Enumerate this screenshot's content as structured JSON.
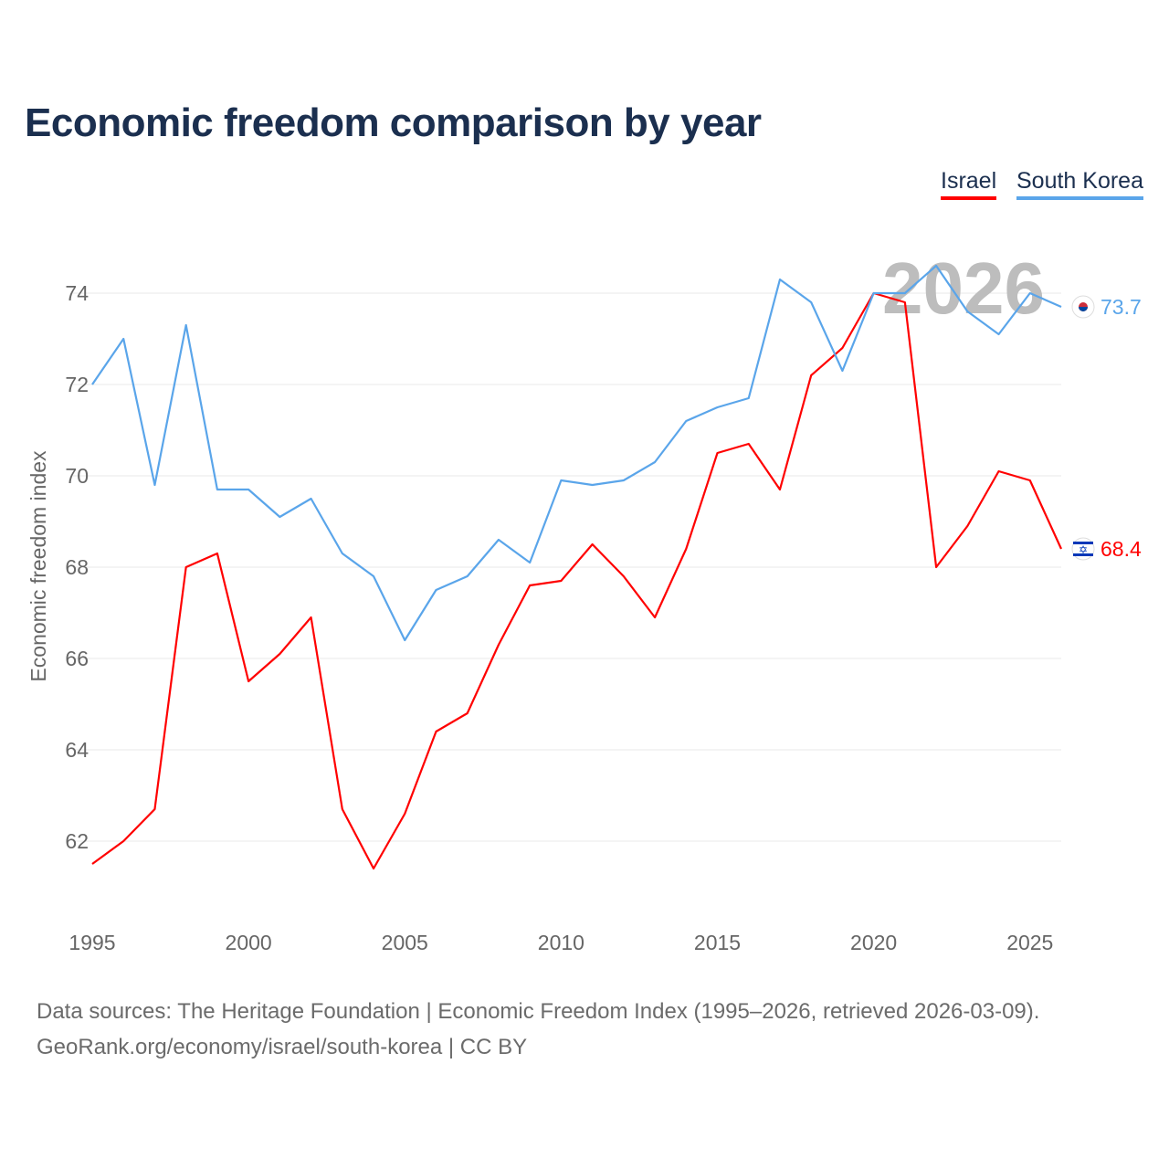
{
  "title": "Economic freedom comparison by year",
  "legend": [
    {
      "label": "Israel",
      "color": "#ff0000"
    },
    {
      "label": "South Korea",
      "color": "#5aa5ea"
    }
  ],
  "footer": {
    "line1": "Data sources: The Heritage Foundation | Economic Freedom Index (1995–2026, retrieved 2026-03-09).",
    "line2": "GeoRank.org/economy/israel/south-korea | CC BY"
  },
  "chart_data": {
    "type": "line",
    "title": "Economic freedom comparison by year",
    "xlabel": "",
    "ylabel": "Economic freedom index",
    "watermark_year": "2026",
    "xlim": [
      1995,
      2026
    ],
    "ylim": [
      60.8,
      75.5
    ],
    "xticks": [
      1995,
      2000,
      2005,
      2010,
      2015,
      2020,
      2025
    ],
    "yticks": [
      62,
      64,
      66,
      68,
      70,
      72,
      74
    ],
    "grid": true,
    "x": [
      1995,
      1996,
      1997,
      1998,
      1999,
      2000,
      2001,
      2002,
      2003,
      2004,
      2005,
      2006,
      2007,
      2008,
      2009,
      2010,
      2011,
      2012,
      2013,
      2014,
      2015,
      2016,
      2017,
      2018,
      2019,
      2020,
      2021,
      2022,
      2023,
      2024,
      2025,
      2026
    ],
    "series": [
      {
        "name": "Israel",
        "color": "#ff0000",
        "flag": "israel-flag",
        "end_label": "68.4",
        "values": [
          61.5,
          62.0,
          62.7,
          68.0,
          68.3,
          65.5,
          66.1,
          66.9,
          62.7,
          61.4,
          62.6,
          64.4,
          64.8,
          66.3,
          67.6,
          67.7,
          68.5,
          67.8,
          66.9,
          68.4,
          70.5,
          70.7,
          69.7,
          72.2,
          72.8,
          74.0,
          73.8,
          68.0,
          68.9,
          70.1,
          69.9,
          68.4
        ]
      },
      {
        "name": "South Korea",
        "color": "#5aa5ea",
        "flag": "south-korea-flag",
        "end_label": "73.7",
        "values": [
          72.0,
          73.0,
          69.8,
          73.3,
          69.7,
          69.7,
          69.1,
          69.5,
          68.3,
          67.8,
          66.4,
          67.5,
          67.8,
          68.6,
          68.1,
          69.9,
          69.8,
          69.9,
          70.3,
          71.2,
          71.5,
          71.7,
          74.3,
          73.8,
          72.3,
          74.0,
          74.0,
          74.6,
          73.6,
          73.1,
          74.0,
          73.7
        ]
      }
    ]
  }
}
